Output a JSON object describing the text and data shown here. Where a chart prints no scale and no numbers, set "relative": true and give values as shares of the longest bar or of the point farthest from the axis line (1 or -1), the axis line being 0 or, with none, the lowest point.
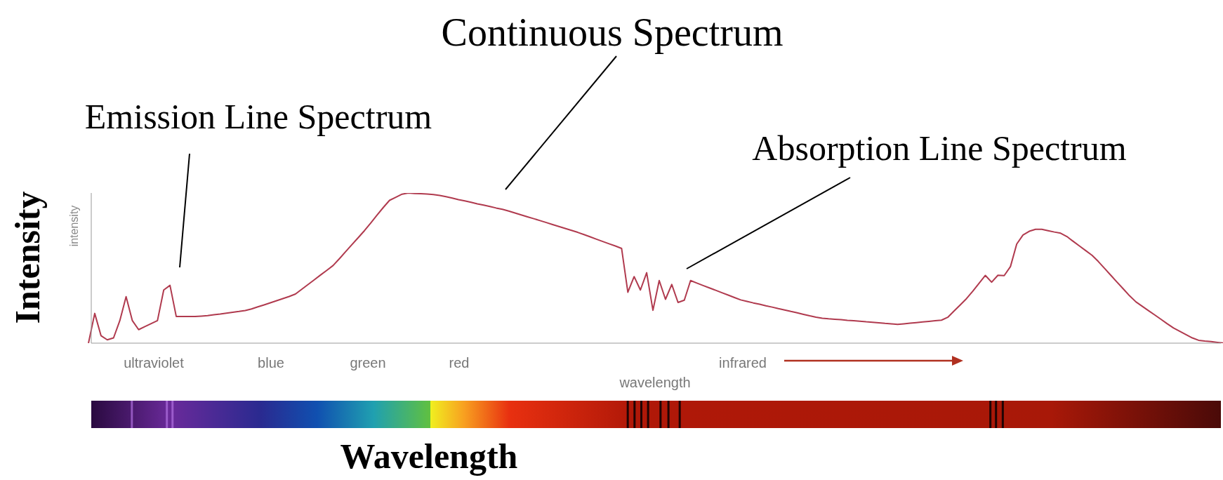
{
  "chart_data": {
    "type": "line",
    "relative": true,
    "xlabel": "Wavelength",
    "ylabel": "Intensity",
    "annotations": [
      "Continuous Spectrum",
      "Emission Line Spectrum",
      "Absorption Line Spectrum",
      "intensity",
      "ultraviolet",
      "blue",
      "green",
      "red",
      "infrared",
      "wavelength"
    ],
    "categories": [
      null,
      null,
      null,
      null,
      null,
      null,
      null,
      null,
      null,
      null,
      null,
      null,
      null,
      null,
      null,
      null,
      null,
      null,
      null,
      null,
      null,
      null,
      null,
      null,
      null,
      null,
      null,
      null,
      null,
      null,
      null,
      null,
      null,
      null,
      null,
      null,
      null,
      null,
      null,
      null,
      null,
      null,
      null,
      null,
      null,
      null,
      null,
      null,
      null,
      null,
      null,
      null,
      null,
      null,
      null,
      null,
      null,
      null,
      null,
      null,
      null,
      null,
      null,
      null,
      null,
      null,
      null,
      null,
      null,
      null,
      null,
      null,
      null,
      null,
      null,
      null,
      null,
      null,
      null,
      null,
      null,
      null,
      null,
      null,
      null,
      null,
      null,
      null,
      null,
      null,
      null,
      null,
      null,
      null,
      null,
      null,
      null,
      null,
      null,
      null,
      null,
      null,
      null,
      null,
      null,
      null,
      null,
      null,
      null,
      null,
      null,
      null,
      null,
      null,
      null,
      null,
      null,
      null,
      null,
      null,
      null,
      null,
      null,
      null,
      null,
      null,
      null,
      null,
      null,
      null,
      null,
      null,
      null,
      null,
      null,
      null,
      null,
      null,
      null,
      null,
      null,
      null,
      null,
      null,
      null,
      null,
      null,
      null,
      null,
      null,
      null,
      null,
      null,
      null,
      null,
      null,
      null,
      null,
      null,
      null,
      null,
      null,
      null,
      null,
      null,
      null,
      null,
      null,
      null,
      null,
      null,
      null,
      null,
      null,
      null,
      null,
      null,
      null,
      null,
      null,
      null,
      null
    ],
    "series": [
      {
        "color": "#b03a4e",
        "values": [
          0,
          0.198,
          0.05,
          0.022,
          0.035,
          0.15,
          0.31,
          0.15,
          0.09,
          0.11,
          0.13,
          0.15,
          0.354,
          0.385,
          0.177,
          0.177,
          0.177,
          0.177,
          0.18,
          0.183,
          0.189,
          0.194,
          0.2,
          0.206,
          0.211,
          0.217,
          0.228,
          0.242,
          0.255,
          0.269,
          0.283,
          0.297,
          0.311,
          0.327,
          0.359,
          0.39,
          0.422,
          0.454,
          0.485,
          0.517,
          0.562,
          0.609,
          0.656,
          0.702,
          0.749,
          0.8,
          0.852,
          0.903,
          0.951,
          0.971,
          0.992,
          1.0,
          0.997,
          0.995,
          0.993,
          0.99,
          0.984,
          0.975,
          0.966,
          0.956,
          0.947,
          0.938,
          0.928,
          0.919,
          0.91,
          0.9,
          0.891,
          0.88,
          0.867,
          0.854,
          0.841,
          0.829,
          0.816,
          0.803,
          0.79,
          0.777,
          0.764,
          0.751,
          0.738,
          0.723,
          0.708,
          0.692,
          0.677,
          0.662,
          0.647,
          0.631,
          0.339,
          0.443,
          0.354,
          0.469,
          0.219,
          0.417,
          0.292,
          0.391,
          0.271,
          0.286,
          0.417,
          0.4,
          0.384,
          0.368,
          0.352,
          0.336,
          0.32,
          0.304,
          0.288,
          0.278,
          0.268,
          0.259,
          0.249,
          0.24,
          0.23,
          0.221,
          0.211,
          0.202,
          0.192,
          0.182,
          0.173,
          0.166,
          0.162,
          0.159,
          0.156,
          0.152,
          0.149,
          0.146,
          0.142,
          0.139,
          0.136,
          0.132,
          0.129,
          0.125,
          0.129,
          0.133,
          0.137,
          0.141,
          0.145,
          0.149,
          0.153,
          0.172,
          0.214,
          0.255,
          0.297,
          0.346,
          0.399,
          0.451,
          0.406,
          0.452,
          0.45,
          0.51,
          0.66,
          0.72,
          0.745,
          0.758,
          0.758,
          0.749,
          0.74,
          0.732,
          0.71,
          0.678,
          0.647,
          0.616,
          0.585,
          0.544,
          0.498,
          0.452,
          0.406,
          0.361,
          0.315,
          0.275,
          0.246,
          0.217,
          0.188,
          0.159,
          0.129,
          0.101,
          0.079,
          0.057,
          0.035,
          0.019,
          0.014,
          0.01,
          0.005,
          0
        ]
      }
    ],
    "grid": false,
    "legend": false,
    "marker": "none",
    "line_style": "solid"
  }
}
